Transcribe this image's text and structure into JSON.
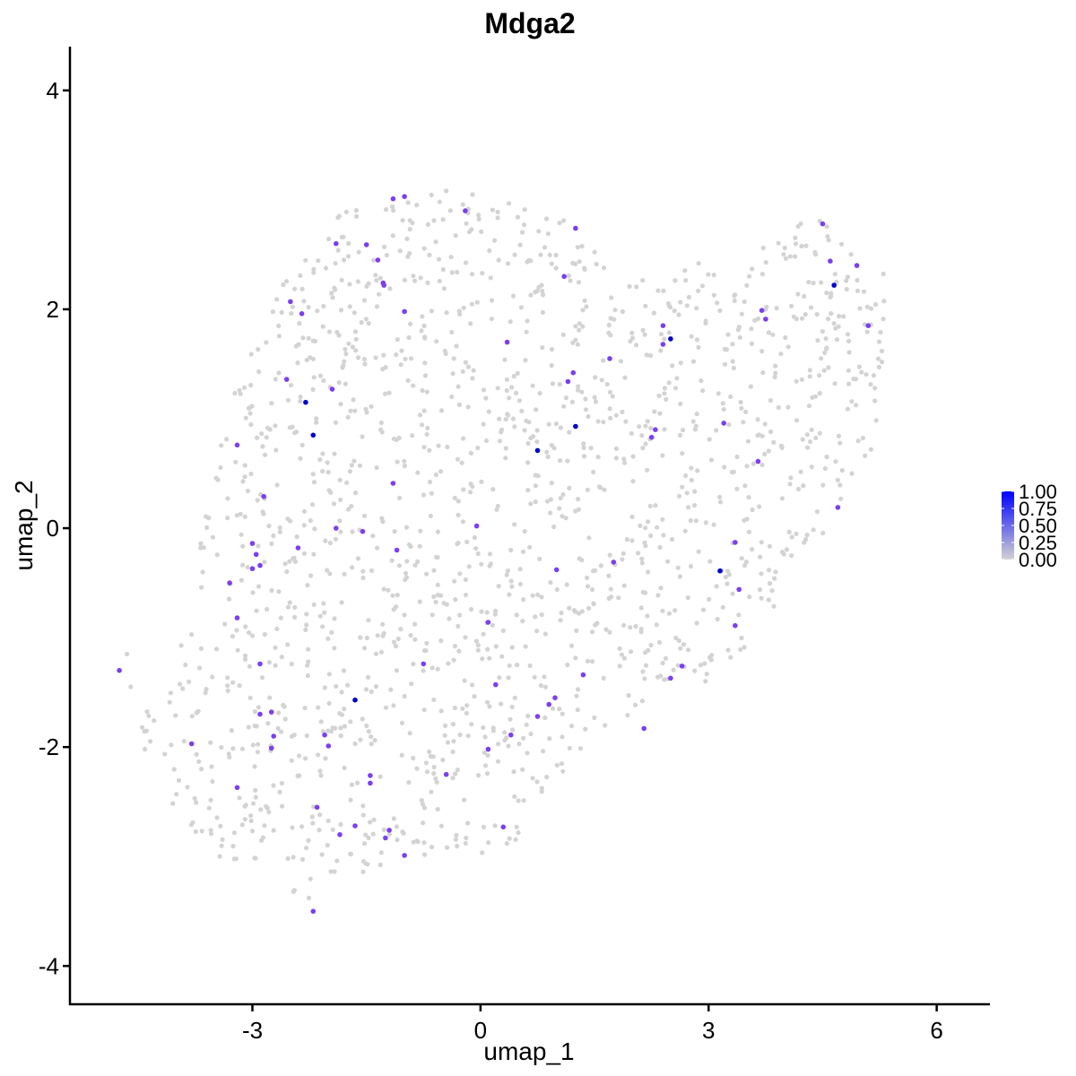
{
  "chart_data": {
    "type": "scatter",
    "title": "Mdga2",
    "xlabel": "umap_1",
    "ylabel": "umap_2",
    "xlim": [
      -5.4,
      6.7
    ],
    "ylim": [
      -4.35,
      4.4
    ],
    "x_ticks": [
      -3,
      0,
      3,
      6
    ],
    "y_ticks": [
      -4,
      -2,
      0,
      2,
      4
    ],
    "x_tick_labels": [
      "-3",
      "0",
      "3",
      "6"
    ],
    "y_tick_labels": [
      "-4",
      "-2",
      "0",
      "2",
      "4"
    ],
    "grid": false,
    "legend": {
      "placement": "right",
      "type": "colorbar",
      "range": [
        0,
        1
      ],
      "ticks": [
        1.0,
        0.75,
        0.5,
        0.25,
        0.0
      ],
      "labels": [
        "1.00",
        "0.75",
        "0.50",
        "0.25",
        "0.00"
      ],
      "color_low": "#d3d3d3",
      "color_high": "#0000ff"
    },
    "background_color": "#d3d3d3",
    "background_cells_approx": 1600,
    "expressed_points": [
      {
        "x": -2.3,
        "y": 1.15,
        "v": 1.0
      },
      {
        "x": -2.2,
        "y": 0.85,
        "v": 1.0
      },
      {
        "x": -1.65,
        "y": -1.57,
        "v": 1.0
      },
      {
        "x": 0.75,
        "y": 0.71,
        "v": 1.0
      },
      {
        "x": 1.25,
        "y": 0.93,
        "v": 1.0
      },
      {
        "x": 2.5,
        "y": 1.73,
        "v": 1.0
      },
      {
        "x": 3.15,
        "y": -0.39,
        "v": 1.0
      },
      {
        "x": 4.65,
        "y": 2.22,
        "v": 1.0
      },
      {
        "x": -4.75,
        "y": -1.3,
        "v": 0.7
      },
      {
        "x": -3.8,
        "y": -1.97,
        "v": 0.7
      },
      {
        "x": -3.2,
        "y": 0.76,
        "v": 0.7
      },
      {
        "x": -3.3,
        "y": -0.5,
        "v": 0.7
      },
      {
        "x": -3.2,
        "y": -0.82,
        "v": 0.7
      },
      {
        "x": -3.0,
        "y": -0.14,
        "v": 0.7
      },
      {
        "x": -2.95,
        "y": -0.24,
        "v": 0.7
      },
      {
        "x": -3.0,
        "y": -0.37,
        "v": 0.7
      },
      {
        "x": -2.9,
        "y": -0.34,
        "v": 0.7
      },
      {
        "x": -2.85,
        "y": 0.29,
        "v": 0.7
      },
      {
        "x": -2.9,
        "y": -1.24,
        "v": 0.7
      },
      {
        "x": -2.9,
        "y": -1.7,
        "v": 0.7
      },
      {
        "x": -2.75,
        "y": -1.68,
        "v": 0.7
      },
      {
        "x": -2.72,
        "y": -1.9,
        "v": 0.7
      },
      {
        "x": -2.75,
        "y": -2.01,
        "v": 0.7
      },
      {
        "x": -3.2,
        "y": -2.37,
        "v": 0.7
      },
      {
        "x": -2.5,
        "y": 2.07,
        "v": 0.7
      },
      {
        "x": -2.35,
        "y": 1.96,
        "v": 0.7
      },
      {
        "x": -2.55,
        "y": 1.36,
        "v": 0.7
      },
      {
        "x": -2.4,
        "y": -0.18,
        "v": 0.7
      },
      {
        "x": -2.2,
        "y": -3.5,
        "v": 0.7
      },
      {
        "x": -1.9,
        "y": 2.6,
        "v": 0.7
      },
      {
        "x": -1.9,
        "y": 0.0,
        "v": 0.7
      },
      {
        "x": -1.95,
        "y": 1.27,
        "v": 0.7
      },
      {
        "x": -2.0,
        "y": -1.99,
        "v": 0.7
      },
      {
        "x": -2.05,
        "y": -1.89,
        "v": 0.7
      },
      {
        "x": -2.15,
        "y": -2.55,
        "v": 0.7
      },
      {
        "x": -1.85,
        "y": -2.8,
        "v": 0.7
      },
      {
        "x": -1.65,
        "y": -2.72,
        "v": 0.7
      },
      {
        "x": -1.5,
        "y": 2.59,
        "v": 0.7
      },
      {
        "x": -1.35,
        "y": 2.45,
        "v": 0.7
      },
      {
        "x": -1.28,
        "y": 2.24,
        "v": 0.7
      },
      {
        "x": -1.27,
        "y": 2.22,
        "v": 0.7
      },
      {
        "x": -1.55,
        "y": -0.03,
        "v": 0.7
      },
      {
        "x": -1.45,
        "y": -2.26,
        "v": 0.7
      },
      {
        "x": -1.45,
        "y": -2.33,
        "v": 0.7
      },
      {
        "x": -1.2,
        "y": -2.76,
        "v": 0.7
      },
      {
        "x": -1.25,
        "y": -2.83,
        "v": 0.7
      },
      {
        "x": -1.15,
        "y": 3.01,
        "v": 0.7
      },
      {
        "x": -1.0,
        "y": 3.03,
        "v": 0.7
      },
      {
        "x": -1.15,
        "y": 0.41,
        "v": 0.7
      },
      {
        "x": -1.1,
        "y": -0.2,
        "v": 0.7
      },
      {
        "x": -1.0,
        "y": 1.98,
        "v": 0.7
      },
      {
        "x": -1.0,
        "y": -2.99,
        "v": 0.7
      },
      {
        "x": -0.75,
        "y": -1.24,
        "v": 0.7
      },
      {
        "x": -0.45,
        "y": -2.25,
        "v": 0.7
      },
      {
        "x": -0.2,
        "y": 2.9,
        "v": 0.7
      },
      {
        "x": -0.05,
        "y": 0.02,
        "v": 0.7
      },
      {
        "x": 0.1,
        "y": -0.86,
        "v": 0.7
      },
      {
        "x": 0.1,
        "y": -2.02,
        "v": 0.7
      },
      {
        "x": 0.2,
        "y": -1.43,
        "v": 0.7
      },
      {
        "x": 0.3,
        "y": -2.73,
        "v": 0.7
      },
      {
        "x": 0.35,
        "y": 1.7,
        "v": 0.7
      },
      {
        "x": 0.4,
        "y": -1.89,
        "v": 0.7
      },
      {
        "x": 0.75,
        "y": -1.72,
        "v": 0.7
      },
      {
        "x": 0.9,
        "y": -1.61,
        "v": 0.7
      },
      {
        "x": 0.98,
        "y": -1.55,
        "v": 0.7
      },
      {
        "x": 1.0,
        "y": -0.38,
        "v": 0.7
      },
      {
        "x": 1.1,
        "y": 2.3,
        "v": 0.7
      },
      {
        "x": 1.15,
        "y": 1.34,
        "v": 0.7
      },
      {
        "x": 1.22,
        "y": 1.42,
        "v": 0.7
      },
      {
        "x": 1.25,
        "y": 2.74,
        "v": 0.7
      },
      {
        "x": 1.35,
        "y": -1.34,
        "v": 0.7
      },
      {
        "x": 1.7,
        "y": 1.55,
        "v": 0.7
      },
      {
        "x": 1.75,
        "y": -0.31,
        "v": 0.7
      },
      {
        "x": 2.15,
        "y": -1.83,
        "v": 0.7
      },
      {
        "x": 2.25,
        "y": 0.83,
        "v": 0.7
      },
      {
        "x": 2.3,
        "y": 0.9,
        "v": 0.7
      },
      {
        "x": 2.4,
        "y": 1.85,
        "v": 0.7
      },
      {
        "x": 2.4,
        "y": 1.68,
        "v": 0.7
      },
      {
        "x": 2.5,
        "y": -1.37,
        "v": 0.7
      },
      {
        "x": 2.65,
        "y": -1.26,
        "v": 0.7
      },
      {
        "x": 3.2,
        "y": 0.96,
        "v": 0.7
      },
      {
        "x": 3.35,
        "y": -0.89,
        "v": 0.7
      },
      {
        "x": 3.35,
        "y": -0.13,
        "v": 0.7
      },
      {
        "x": 3.4,
        "y": -0.56,
        "v": 0.7
      },
      {
        "x": 3.65,
        "y": 0.61,
        "v": 0.7
      },
      {
        "x": 3.7,
        "y": 1.99,
        "v": 0.7
      },
      {
        "x": 3.75,
        "y": 1.91,
        "v": 0.7
      },
      {
        "x": 4.5,
        "y": 2.78,
        "v": 0.7
      },
      {
        "x": 4.6,
        "y": 2.44,
        "v": 0.7
      },
      {
        "x": 4.7,
        "y": 0.19,
        "v": 0.7
      },
      {
        "x": 4.95,
        "y": 2.4,
        "v": 0.7
      },
      {
        "x": 5.1,
        "y": 1.85,
        "v": 0.7
      }
    ]
  }
}
